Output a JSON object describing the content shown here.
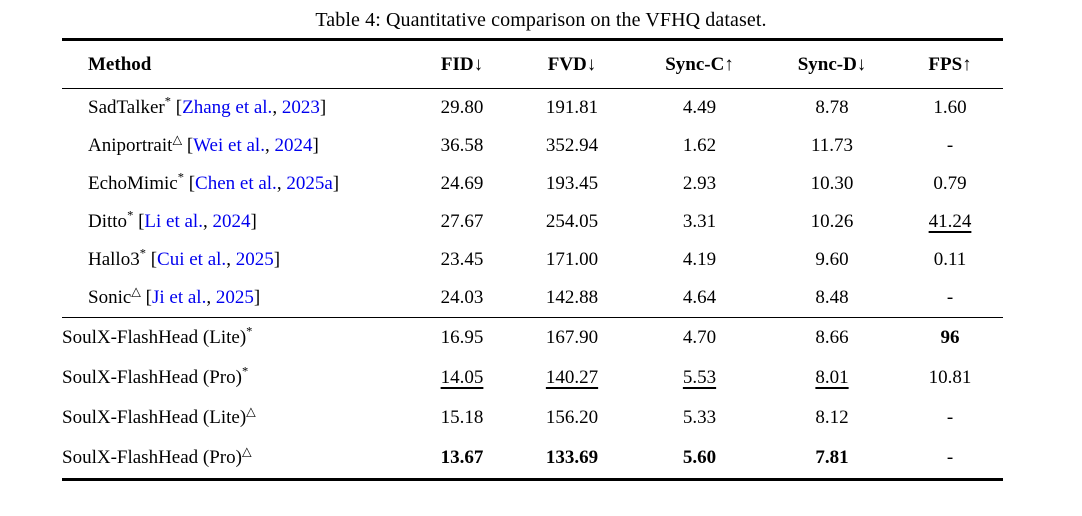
{
  "page": {
    "title": "Table 4: Quantitative comparison on the VFHQ dataset."
  },
  "colors": {
    "citation_link_blue": "#0000EE",
    "text": "#000000",
    "rules": "#000000"
  },
  "table": {
    "headers": [
      "Method",
      "FID↓",
      "FVD↓",
      "Sync-C↑",
      "Sync-D↓",
      "FPS↑"
    ],
    "sections": [
      {
        "name": "baseline-methods",
        "rows": [
          {
            "method": {
              "name": "SadTalker",
              "mark": "*",
              "citation": {
                "authors": "Zhang et al.",
                "year": "2023"
              }
            },
            "values": [
              {
                "text": "29.80",
                "style": "normal"
              },
              {
                "text": "191.81",
                "style": "normal"
              },
              {
                "text": "4.49",
                "style": "normal"
              },
              {
                "text": "8.78",
                "style": "normal"
              },
              {
                "text": "1.60",
                "style": "normal"
              }
            ]
          },
          {
            "method": {
              "name": "Aniportrait",
              "mark": "△",
              "citation": {
                "authors": "Wei et al.",
                "year": "2024"
              }
            },
            "values": [
              {
                "text": "36.58",
                "style": "normal"
              },
              {
                "text": "352.94",
                "style": "normal"
              },
              {
                "text": "1.62",
                "style": "normal"
              },
              {
                "text": "11.73",
                "style": "normal"
              },
              {
                "text": "-",
                "style": "normal"
              }
            ]
          },
          {
            "method": {
              "name": "EchoMimic",
              "mark": "*",
              "citation": {
                "authors": "Chen et al.",
                "year": "2025a"
              }
            },
            "values": [
              {
                "text": "24.69",
                "style": "normal"
              },
              {
                "text": "193.45",
                "style": "normal"
              },
              {
                "text": "2.93",
                "style": "normal"
              },
              {
                "text": "10.30",
                "style": "normal"
              },
              {
                "text": "0.79",
                "style": "normal"
              }
            ]
          },
          {
            "method": {
              "name": "Ditto",
              "mark": "*",
              "citation": {
                "authors": "Li et al.",
                "year": "2024"
              }
            },
            "values": [
              {
                "text": "27.67",
                "style": "normal"
              },
              {
                "text": "254.05",
                "style": "normal"
              },
              {
                "text": "3.31",
                "style": "normal"
              },
              {
                "text": "10.26",
                "style": "normal"
              },
              {
                "text": "41.24",
                "style": "underline"
              }
            ]
          },
          {
            "method": {
              "name": "Hallo3",
              "mark": "*",
              "citation": {
                "authors": "Cui et al.",
                "year": "2025"
              }
            },
            "values": [
              {
                "text": "23.45",
                "style": "normal"
              },
              {
                "text": "171.00",
                "style": "normal"
              },
              {
                "text": "4.19",
                "style": "normal"
              },
              {
                "text": "9.60",
                "style": "normal"
              },
              {
                "text": "0.11",
                "style": "normal"
              }
            ]
          },
          {
            "method": {
              "name": "Sonic",
              "mark": "△",
              "citation": {
                "authors": "Ji et al.",
                "year": "2025"
              }
            },
            "values": [
              {
                "text": "24.03",
                "style": "normal"
              },
              {
                "text": "142.88",
                "style": "normal"
              },
              {
                "text": "4.64",
                "style": "normal"
              },
              {
                "text": "8.48",
                "style": "normal"
              },
              {
                "text": "-",
                "style": "normal"
              }
            ]
          }
        ]
      },
      {
        "name": "soulx-flashhead-methods",
        "rows": [
          {
            "method": {
              "name": "SoulX-FlashHead (Lite)",
              "mark": "*",
              "citation": null
            },
            "values": [
              {
                "text": "16.95",
                "style": "normal"
              },
              {
                "text": "167.90",
                "style": "normal"
              },
              {
                "text": "4.70",
                "style": "normal"
              },
              {
                "text": "8.66",
                "style": "normal"
              },
              {
                "text": "96",
                "style": "bold"
              }
            ]
          },
          {
            "method": {
              "name": "SoulX-FlashHead (Pro)",
              "mark": "*",
              "citation": null
            },
            "values": [
              {
                "text": "14.05",
                "style": "underline"
              },
              {
                "text": "140.27",
                "style": "underline"
              },
              {
                "text": "5.53",
                "style": "underline"
              },
              {
                "text": "8.01",
                "style": "underline"
              },
              {
                "text": "10.81",
                "style": "normal"
              }
            ]
          },
          {
            "method": {
              "name": "SoulX-FlashHead (Lite)",
              "mark": "△",
              "citation": null
            },
            "values": [
              {
                "text": "15.18",
                "style": "normal"
              },
              {
                "text": "156.20",
                "style": "normal"
              },
              {
                "text": "5.33",
                "style": "normal"
              },
              {
                "text": "8.12",
                "style": "normal"
              },
              {
                "text": "-",
                "style": "normal"
              }
            ]
          },
          {
            "method": {
              "name": "SoulX-FlashHead (Pro)",
              "mark": "△",
              "citation": null
            },
            "values": [
              {
                "text": "13.67",
                "style": "bold"
              },
              {
                "text": "133.69",
                "style": "bold"
              },
              {
                "text": "5.60",
                "style": "bold"
              },
              {
                "text": "7.81",
                "style": "bold"
              },
              {
                "text": "-",
                "style": "normal"
              }
            ]
          }
        ]
      }
    ]
  }
}
